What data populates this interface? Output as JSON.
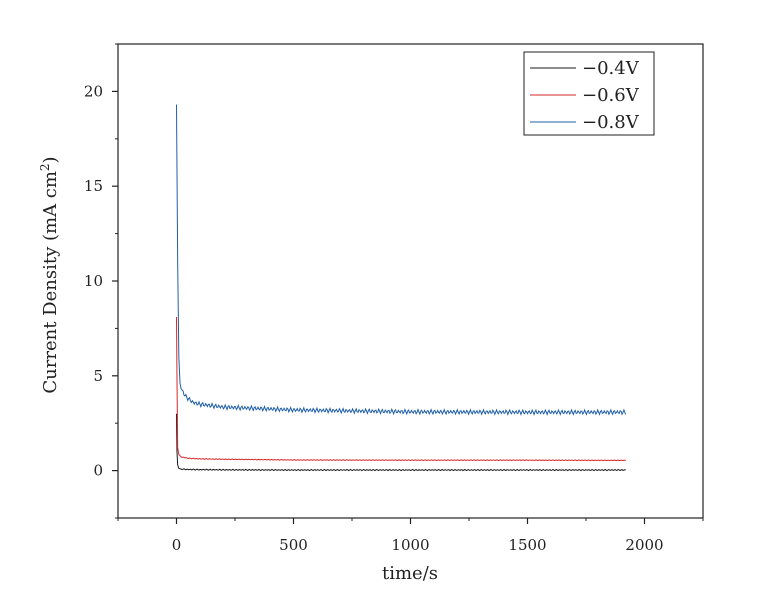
{
  "chart_data": {
    "type": "line",
    "xlabel": "time/s",
    "ylabel_main": "Current Density (mA cm",
    "ylabel_sup": "2",
    "ylabel_close": ")",
    "xlim": [
      -250,
      2250
    ],
    "ylim": [
      -2.5,
      22.5
    ],
    "xticks": [
      0,
      500,
      1000,
      1500,
      2000
    ],
    "yticks": [
      0,
      5,
      10,
      15,
      20
    ],
    "legend_position": "top-right",
    "series": [
      {
        "name": "−0.4V",
        "color": "#1a1a1a",
        "points": [
          [
            0,
            3.0
          ],
          [
            2,
            1.0
          ],
          [
            5,
            0.3
          ],
          [
            10,
            0.12
          ],
          [
            20,
            0.08
          ],
          [
            50,
            0.06
          ],
          [
            100,
            0.05
          ],
          [
            200,
            0.04
          ],
          [
            500,
            0.03
          ],
          [
            1000,
            0.03
          ],
          [
            1500,
            0.03
          ],
          [
            1920,
            0.03
          ]
        ],
        "noise": 0.03
      },
      {
        "name": "−0.6V",
        "color": "#d62728",
        "points": [
          [
            0,
            8.1
          ],
          [
            2,
            5.0
          ],
          [
            5,
            1.2
          ],
          [
            10,
            0.85
          ],
          [
            20,
            0.72
          ],
          [
            50,
            0.65
          ],
          [
            100,
            0.62
          ],
          [
            200,
            0.6
          ],
          [
            500,
            0.56
          ],
          [
            1000,
            0.55
          ],
          [
            1500,
            0.55
          ],
          [
            1920,
            0.54
          ]
        ],
        "noise": 0.02
      },
      {
        "name": "−0.8V",
        "color": "#1f5fa8",
        "points": [
          [
            0,
            19.3
          ],
          [
            2,
            16.0
          ],
          [
            5,
            11.0
          ],
          [
            10,
            6.0
          ],
          [
            15,
            4.6
          ],
          [
            20,
            4.3
          ],
          [
            40,
            3.9
          ],
          [
            70,
            3.6
          ],
          [
            100,
            3.5
          ],
          [
            200,
            3.35
          ],
          [
            500,
            3.2
          ],
          [
            1000,
            3.1
          ],
          [
            1500,
            3.08
          ],
          [
            1920,
            3.08
          ]
        ],
        "noise": 0.12
      }
    ]
  }
}
